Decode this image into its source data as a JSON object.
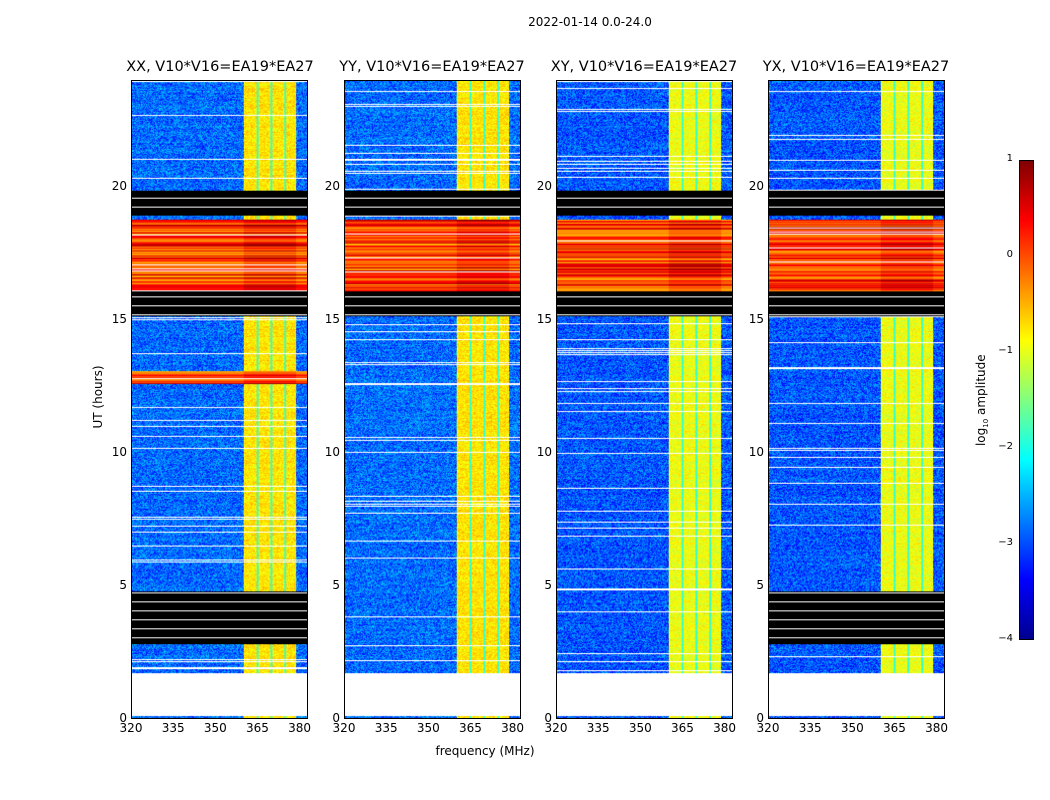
{
  "figure": {
    "suptitle": "2022-01-14 0.0-24.0"
  },
  "chart_data": {
    "type": "heatmap",
    "title": "2022-01-14 0.0-24.0",
    "xlabel": "frequency (MHz)",
    "ylabel": "UT (hours)",
    "xlim": [
      320,
      383
    ],
    "ylim": [
      0,
      24
    ],
    "xticks": [
      "320",
      "335",
      "350",
      "365",
      "380"
    ],
    "xtick_values": [
      320,
      335,
      350,
      365,
      380
    ],
    "yticks": [
      "0",
      "5",
      "10",
      "15",
      "20"
    ],
    "ytick_values": [
      0,
      5,
      10,
      15,
      20
    ],
    "colorbar": {
      "label_main": "log",
      "label_sub": "10",
      "label_rest": " amplitude",
      "range": [
        -4,
        1
      ],
      "ticks": [
        "1",
        "0",
        "−1",
        "−2",
        "−3",
        "−4"
      ],
      "tick_values": [
        1,
        0,
        -1,
        -2,
        -3,
        -4
      ],
      "colormap": "jet"
    },
    "panels": [
      {
        "title": "XX, V10*V16=EA19*EA27",
        "flagged_hours": [
          [
            18.95,
            19.9
          ],
          [
            15.15,
            16.1
          ],
          [
            2.8,
            4.8
          ]
        ],
        "no_data_hours": [
          [
            0.1,
            1.7
          ]
        ],
        "bright_band_mhz": [
          360,
          379
        ],
        "background_level": -3,
        "band_level": -1,
        "rfi_hours": [
          [
            16.1,
            18.8
          ],
          [
            12.6,
            13.1
          ]
        ]
      },
      {
        "title": "YY, V10*V16=EA19*EA27",
        "flagged_hours": [
          [
            18.95,
            19.9
          ],
          [
            15.15,
            16.1
          ]
        ],
        "no_data_hours": [
          [
            0.1,
            1.7
          ]
        ],
        "bright_band_mhz": [
          360,
          379
        ],
        "background_level": -3,
        "band_level": -1,
        "rfi_hours": [
          [
            16.1,
            18.8
          ]
        ]
      },
      {
        "title": "XY, V10*V16=EA19*EA27",
        "flagged_hours": [
          [
            18.95,
            19.9
          ],
          [
            15.15,
            16.1
          ]
        ],
        "no_data_hours": [
          [
            0.1,
            1.7
          ]
        ],
        "bright_band_mhz": [
          360,
          379
        ],
        "background_level": -3.1,
        "band_level": -1.2,
        "rfi_hours": [
          [
            16.1,
            18.8
          ]
        ]
      },
      {
        "title": "YX, V10*V16=EA19*EA27",
        "flagged_hours": [
          [
            18.95,
            19.9
          ],
          [
            15.15,
            16.1
          ],
          [
            2.8,
            4.8
          ]
        ],
        "no_data_hours": [
          [
            0.1,
            1.7
          ]
        ],
        "bright_band_mhz": [
          360,
          379
        ],
        "background_level": -3.1,
        "band_level": -1.2,
        "rfi_hours": [
          [
            16.1,
            18.8
          ]
        ]
      }
    ]
  }
}
